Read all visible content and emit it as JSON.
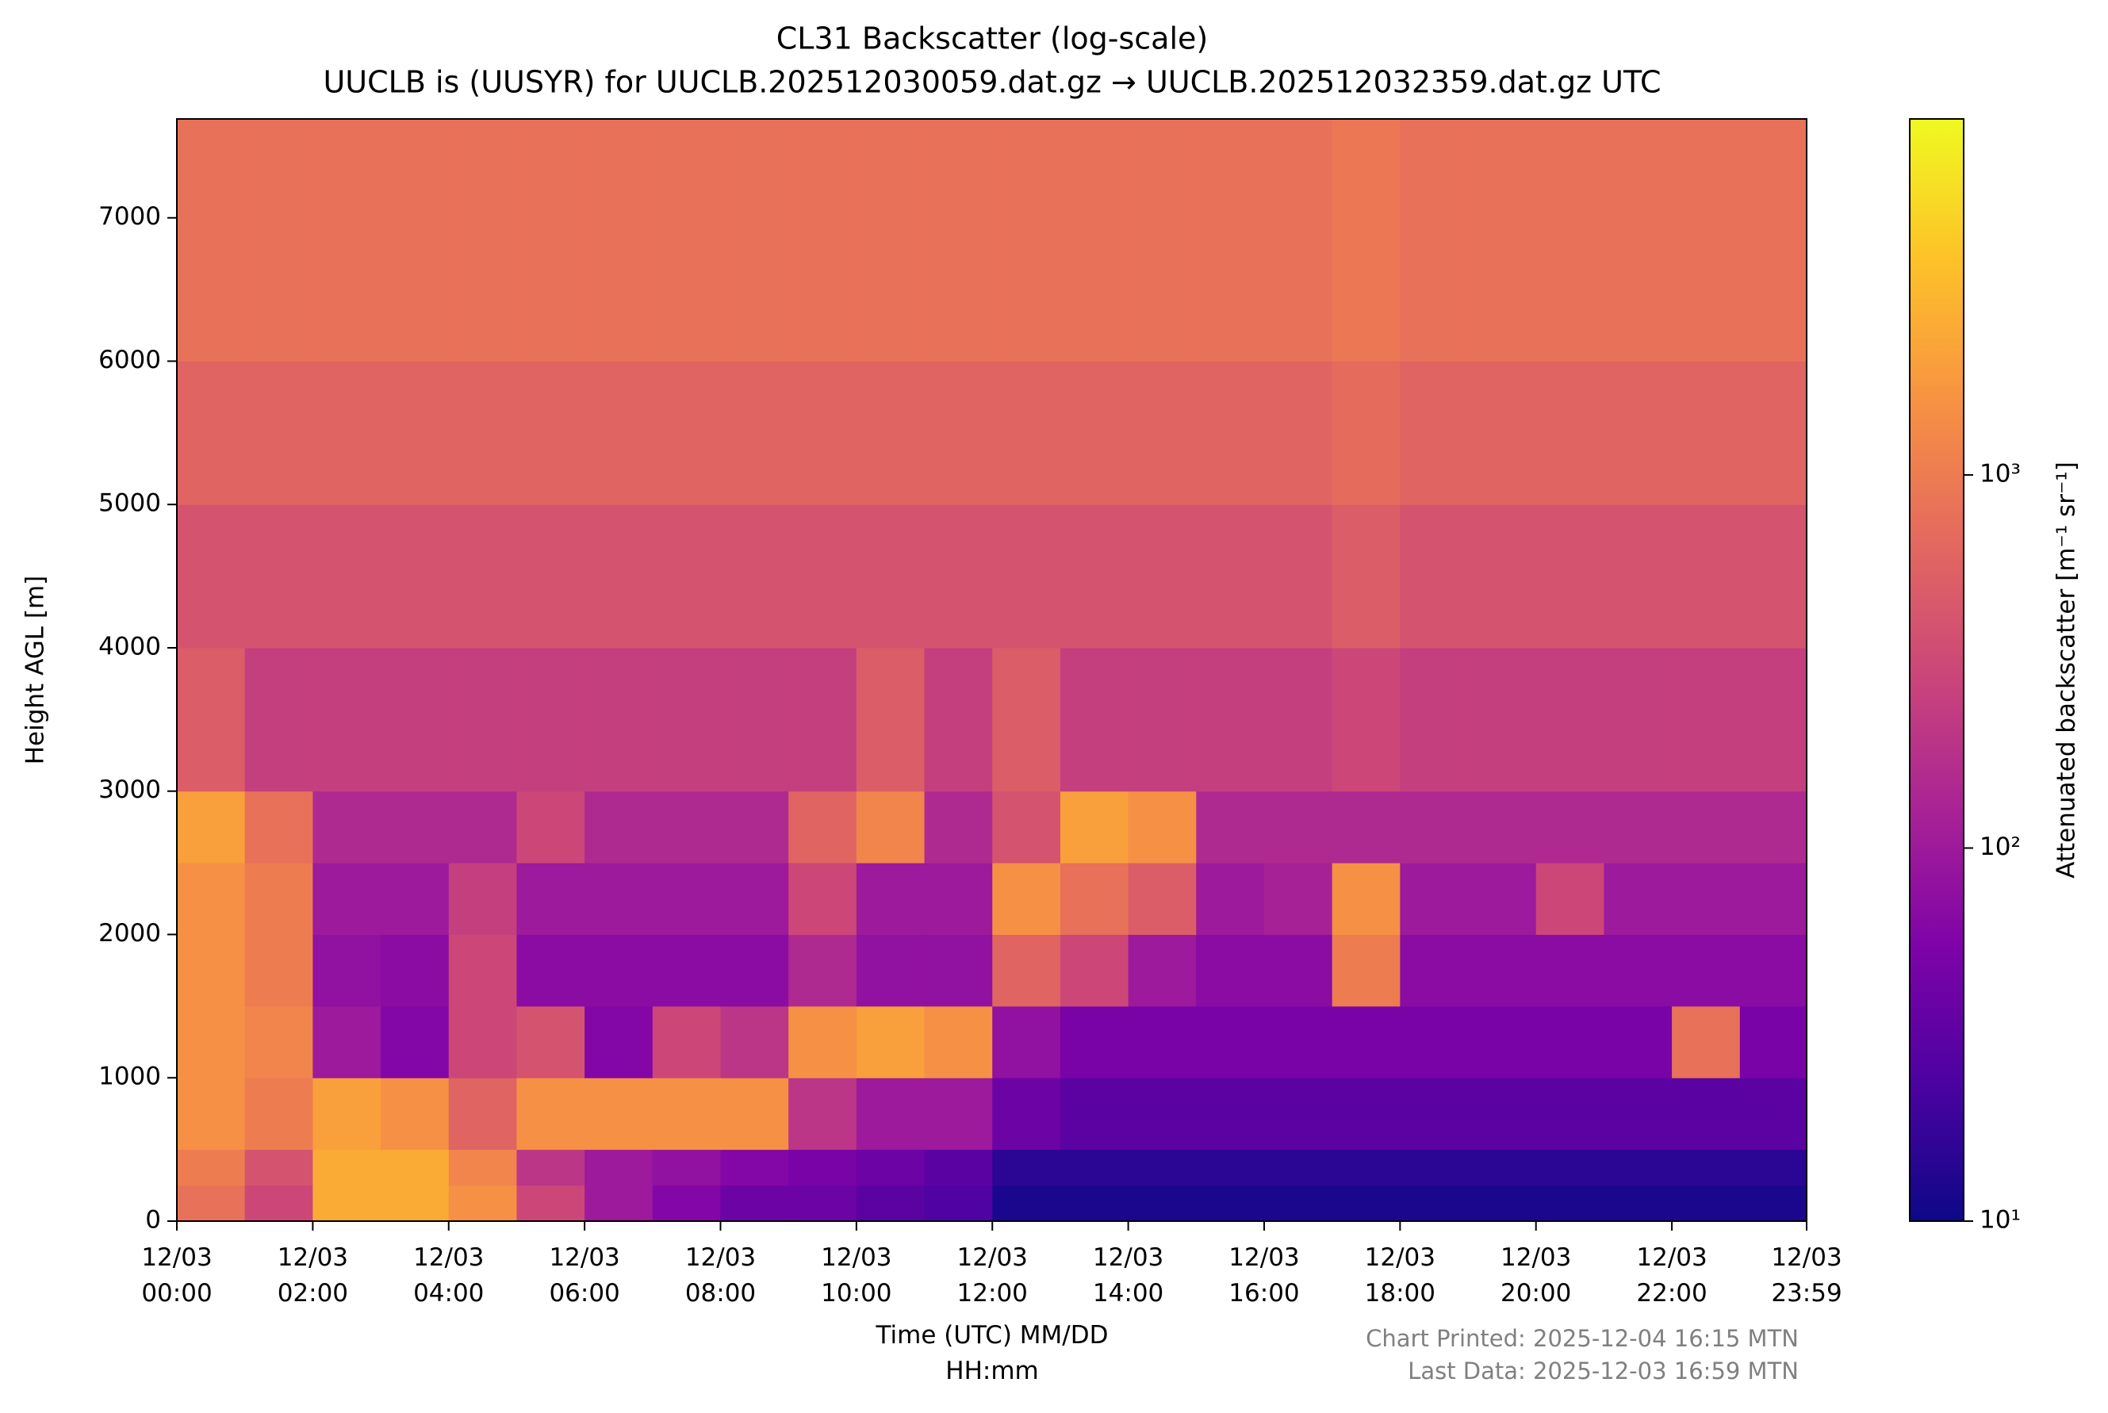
{
  "chart_data": {
    "type": "heatmap",
    "title": "CL31 Backscatter (log-scale)",
    "subtitle": "UUCLB is (UUSYR) for UUCLB.202512030059.dat.gz → UUCLB.202512032359.dat.gz UTC",
    "x_label": "Time (UTC) MM/DD\nHH:mm",
    "y_label": "Height AGL [m]",
    "colorbar_label": "Attenuated backscatter [m⁻¹ sr⁻¹]",
    "annotations": [
      "Chart Printed: 2025-12-04 16:15 MTN",
      "Last Data: 2025-12-03 16:59 MTN"
    ],
    "colormap": "plasma",
    "color_scale": "log",
    "clim": [
      10,
      9000
    ],
    "cticks": [
      {
        "value": 10,
        "label": "10¹"
      },
      {
        "value": 100,
        "label": "10²"
      },
      {
        "value": 1000,
        "label": "10³"
      }
    ],
    "xlim": [
      0,
      23.983
    ],
    "xticks": [
      {
        "value": 0,
        "label": "12/03\n00:00"
      },
      {
        "value": 2,
        "label": "12/03\n02:00"
      },
      {
        "value": 4,
        "label": "12/03\n04:00"
      },
      {
        "value": 6,
        "label": "12/03\n06:00"
      },
      {
        "value": 8,
        "label": "12/03\n08:00"
      },
      {
        "value": 10,
        "label": "12/03\n10:00"
      },
      {
        "value": 12,
        "label": "12/03\n12:00"
      },
      {
        "value": 14,
        "label": "12/03\n14:00"
      },
      {
        "value": 16,
        "label": "12/03\n16:00"
      },
      {
        "value": 18,
        "label": "12/03\n18:00"
      },
      {
        "value": 20,
        "label": "12/03\n20:00"
      },
      {
        "value": 22,
        "label": "12/03\n22:00"
      },
      {
        "value": 23.983,
        "label": "12/03\n23:59"
      }
    ],
    "ylim": [
      0,
      7690
    ],
    "yticks": [
      0,
      1000,
      2000,
      3000,
      4000,
      5000,
      6000,
      7000
    ],
    "x_edges": [
      0,
      1,
      2,
      3,
      4,
      5,
      6,
      7,
      8,
      9,
      10,
      11,
      12,
      13,
      14,
      15,
      16,
      17,
      18,
      19,
      20,
      21,
      22,
      23,
      23.983
    ],
    "y_edges": [
      0,
      250,
      500,
      1000,
      1500,
      2000,
      2500,
      3000,
      4000,
      5000,
      6000,
      7690
    ],
    "z": [
      [
        800,
        300,
        2500,
        2500,
        1500,
        300,
        100,
        60,
        40,
        40,
        30,
        25,
        12,
        12,
        12,
        12,
        12,
        12,
        12,
        12,
        12,
        12,
        12,
        12
      ],
      [
        1000,
        400,
        2500,
        2500,
        1200,
        200,
        100,
        80,
        60,
        50,
        40,
        30,
        15,
        15,
        15,
        15,
        15,
        15,
        15,
        15,
        15,
        15,
        15,
        15
      ],
      [
        1500,
        1000,
        2000,
        1500,
        600,
        1500,
        1500,
        1500,
        1500,
        200,
        100,
        100,
        40,
        30,
        30,
        30,
        30,
        30,
        30,
        30,
        30,
        30,
        30,
        30
      ],
      [
        1500,
        1200,
        100,
        60,
        300,
        400,
        60,
        300,
        200,
        1500,
        2000,
        1500,
        80,
        50,
        50,
        50,
        50,
        50,
        50,
        50,
        50,
        50,
        800,
        50
      ],
      [
        1500,
        1000,
        80,
        70,
        300,
        70,
        70,
        70,
        70,
        150,
        80,
        80,
        600,
        300,
        100,
        70,
        70,
        1000,
        70,
        70,
        70,
        70,
        70,
        70
      ],
      [
        1500,
        1000,
        100,
        100,
        250,
        100,
        100,
        100,
        100,
        300,
        100,
        100,
        1500,
        800,
        500,
        100,
        120,
        1500,
        100,
        100,
        300,
        100,
        100,
        100
      ],
      [
        2000,
        800,
        150,
        150,
        150,
        300,
        150,
        150,
        150,
        600,
        1200,
        150,
        400,
        2000,
        1500,
        150,
        150,
        150,
        150,
        150,
        150,
        150,
        150,
        150
      ],
      [
        500,
        250,
        250,
        250,
        250,
        250,
        250,
        250,
        250,
        250,
        500,
        250,
        500,
        250,
        250,
        250,
        250,
        300,
        250,
        250,
        250,
        250,
        250,
        250
      ],
      [
        400,
        400,
        400,
        400,
        400,
        400,
        400,
        400,
        400,
        400,
        400,
        400,
        400,
        400,
        400,
        400,
        400,
        500,
        400,
        400,
        400,
        400,
        400,
        400
      ],
      [
        600,
        600,
        600,
        600,
        600,
        600,
        600,
        600,
        600,
        600,
        600,
        600,
        600,
        600,
        600,
        600,
        600,
        700,
        600,
        600,
        600,
        600,
        600,
        600
      ],
      [
        800,
        800,
        800,
        800,
        800,
        800,
        800,
        800,
        800,
        800,
        800,
        800,
        800,
        800,
        800,
        800,
        800,
        900,
        800,
        800,
        800,
        800,
        800,
        800
      ]
    ]
  }
}
